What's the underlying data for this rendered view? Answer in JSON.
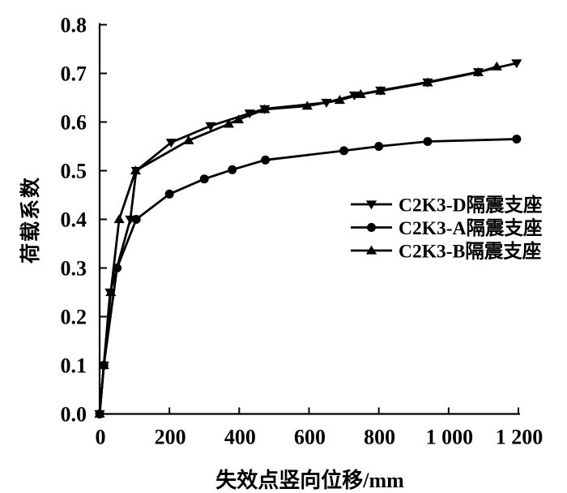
{
  "figure": {
    "background": "#ffffff",
    "ink": "#000000"
  },
  "chart_data": {
    "type": "line",
    "title": "",
    "xlabel": "失效点竖向位移/mm",
    "ylabel": "荷载系数",
    "xlim": [
      0,
      1200
    ],
    "ylim": [
      0.0,
      0.8
    ],
    "grid": false,
    "legend_position": "middle-right",
    "x_ticks": {
      "values": [
        0,
        200,
        400,
        600,
        800,
        1000,
        1200
      ],
      "labels": [
        "0",
        "200",
        "400",
        "600",
        "800",
        "1 000",
        "1 200"
      ]
    },
    "y_ticks": {
      "values": [
        0.0,
        0.1,
        0.2,
        0.3,
        0.4,
        0.5,
        0.6,
        0.7,
        0.8
      ],
      "labels": [
        "0.0",
        "0.1",
        "0.2",
        "0.3",
        "0.4",
        "0.5",
        "0.6",
        "0.7",
        "0.8"
      ]
    },
    "series": [
      {
        "name": "C2K3-D隔震支座",
        "marker": "triangle-down",
        "color": "#000000",
        "points": [
          [
            0,
            0.0
          ],
          [
            12,
            0.1
          ],
          [
            30,
            0.25
          ],
          [
            88,
            0.4
          ],
          [
            105,
            0.5
          ],
          [
            205,
            0.558
          ],
          [
            318,
            0.592
          ],
          [
            430,
            0.618
          ],
          [
            473,
            0.627
          ],
          [
            650,
            0.64
          ],
          [
            730,
            0.655
          ],
          [
            805,
            0.665
          ],
          [
            940,
            0.682
          ],
          [
            1085,
            0.703
          ],
          [
            1195,
            0.721
          ]
        ]
      },
      {
        "name": "C2K3-A隔震支座",
        "marker": "circle",
        "color": "#000000",
        "points": [
          [
            0,
            0.0
          ],
          [
            12,
            0.1
          ],
          [
            50,
            0.3
          ],
          [
            105,
            0.4
          ],
          [
            200,
            0.452
          ],
          [
            300,
            0.483
          ],
          [
            380,
            0.502
          ],
          [
            475,
            0.522
          ],
          [
            700,
            0.541
          ],
          [
            800,
            0.55
          ],
          [
            940,
            0.56
          ],
          [
            1195,
            0.565
          ]
        ]
      },
      {
        "name": "C2K3-B隔震支座",
        "marker": "triangle-up",
        "color": "#000000",
        "points": [
          [
            0,
            0.0
          ],
          [
            12,
            0.1
          ],
          [
            32,
            0.25
          ],
          [
            56,
            0.4
          ],
          [
            103,
            0.5
          ],
          [
            255,
            0.562
          ],
          [
            370,
            0.596
          ],
          [
            398,
            0.605
          ],
          [
            473,
            0.626
          ],
          [
            595,
            0.633
          ],
          [
            688,
            0.645
          ],
          [
            748,
            0.657
          ],
          [
            805,
            0.664
          ],
          [
            940,
            0.681
          ],
          [
            1085,
            0.702
          ],
          [
            1138,
            0.714
          ]
        ]
      }
    ]
  }
}
